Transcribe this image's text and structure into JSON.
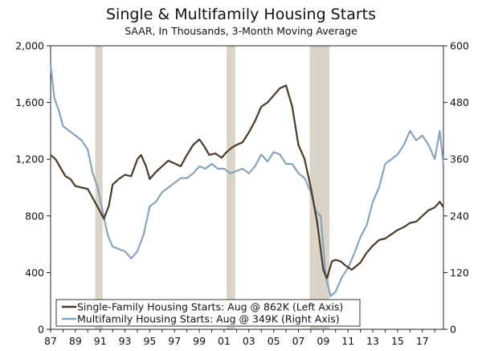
{
  "chart_data": {
    "type": "line",
    "title": "Single & Multifamily Housing Starts",
    "subtitle": "SAAR, In Thousands, 3-Month Moving Average",
    "x_range": [
      1987,
      2018.7
    ],
    "x_tick_values": [
      1987,
      1989,
      1991,
      1993,
      1995,
      1997,
      1999,
      2001,
      2003,
      2005,
      2007,
      2009,
      2011,
      2013,
      2015,
      2017
    ],
    "x_tick_labels": [
      "87",
      "89",
      "91",
      "93",
      "95",
      "97",
      "99",
      "01",
      "03",
      "05",
      "07",
      "09",
      "11",
      "13",
      "15",
      "17"
    ],
    "y_left": {
      "range": [
        0,
        2000
      ],
      "ticks": [
        0,
        400,
        800,
        1200,
        1600,
        2000
      ],
      "tick_labels": [
        "0",
        "400",
        "800",
        "1,200",
        "1,600",
        "2,000"
      ]
    },
    "y_right": {
      "range": [
        0,
        600
      ],
      "ticks": [
        0,
        120,
        240,
        360,
        480,
        600
      ],
      "tick_labels": [
        "0",
        "120",
        "240",
        "360",
        "480",
        "600"
      ]
    },
    "recessions": [
      [
        1990.6,
        1991.2
      ],
      [
        2001.2,
        2001.9
      ],
      [
        2007.9,
        2009.5
      ]
    ],
    "series": [
      {
        "name": "Single-Family Housing Starts: Aug @ 862K (Left Axis)",
        "axis": "left",
        "color": "#4a3a2c",
        "x": [
          1987.0,
          1987.4,
          1987.8,
          1988.2,
          1988.6,
          1989.0,
          1989.5,
          1990.0,
          1990.5,
          1991.0,
          1991.3,
          1991.7,
          1992.0,
          1992.5,
          1993.0,
          1993.5,
          1994.0,
          1994.3,
          1994.7,
          1995.0,
          1995.5,
          1996.0,
          1996.5,
          1997.0,
          1997.5,
          1998.0,
          1998.5,
          1999.0,
          1999.4,
          1999.8,
          2000.3,
          2000.8,
          2001.2,
          2001.6,
          2002.0,
          2002.5,
          2003.0,
          2003.5,
          2004.0,
          2004.5,
          2005.0,
          2005.5,
          2006.0,
          2006.5,
          2007.0,
          2007.5,
          2008.0,
          2008.5,
          2009.0,
          2009.3,
          2009.7,
          2010.0,
          2010.4,
          2010.8,
          2011.3,
          2012.0,
          2012.5,
          2013.0,
          2013.5,
          2014.0,
          2014.5,
          2015.0,
          2015.5,
          2016.0,
          2016.5,
          2017.0,
          2017.5,
          2018.0,
          2018.4,
          2018.7
        ],
        "values": [
          1230,
          1200,
          1140,
          1080,
          1060,
          1010,
          1000,
          990,
          910,
          830,
          780,
          870,
          1020,
          1060,
          1090,
          1080,
          1200,
          1230,
          1150,
          1060,
          1110,
          1150,
          1190,
          1170,
          1150,
          1230,
          1300,
          1340,
          1290,
          1230,
          1240,
          1210,
          1250,
          1280,
          1300,
          1320,
          1390,
          1470,
          1570,
          1600,
          1650,
          1700,
          1720,
          1570,
          1300,
          1200,
          1000,
          760,
          420,
          360,
          480,
          490,
          480,
          450,
          420,
          470,
          540,
          590,
          630,
          640,
          670,
          700,
          720,
          750,
          760,
          800,
          840,
          860,
          900,
          862
        ]
      },
      {
        "name": "Multifamily Housing Starts: Aug @ 349K (Right Axis)",
        "axis": "right",
        "color": "#8aa3bd",
        "x": [
          1987.0,
          1987.3,
          1987.7,
          1988.0,
          1988.5,
          1989.0,
          1989.5,
          1990.0,
          1990.4,
          1990.8,
          1991.2,
          1991.6,
          1992.0,
          1992.5,
          1993.0,
          1993.5,
          1994.0,
          1994.5,
          1995.0,
          1995.5,
          1996.0,
          1996.5,
          1997.0,
          1997.5,
          1998.0,
          1998.5,
          1999.0,
          1999.5,
          2000.0,
          2000.5,
          2001.0,
          2001.5,
          2002.0,
          2002.5,
          2003.0,
          2003.5,
          2004.0,
          2004.5,
          2005.0,
          2005.5,
          2006.0,
          2006.5,
          2007.0,
          2007.5,
          2008.0,
          2008.4,
          2008.8,
          2009.2,
          2009.6,
          2010.0,
          2010.5,
          2011.0,
          2011.5,
          2012.0,
          2012.5,
          2013.0,
          2013.5,
          2014.0,
          2014.5,
          2015.0,
          2015.5,
          2016.0,
          2016.5,
          2017.0,
          2017.5,
          2018.0,
          2018.4,
          2018.7
        ],
        "values": [
          560,
          490,
          460,
          430,
          420,
          410,
          400,
          380,
          330,
          300,
          250,
          200,
          175,
          170,
          165,
          150,
          165,
          200,
          260,
          270,
          290,
          300,
          310,
          320,
          320,
          330,
          345,
          340,
          350,
          340,
          340,
          330,
          335,
          340,
          330,
          345,
          370,
          355,
          375,
          370,
          350,
          350,
          330,
          320,
          290,
          250,
          240,
          110,
          70,
          80,
          110,
          130,
          160,
          195,
          220,
          270,
          300,
          350,
          360,
          370,
          390,
          420,
          400,
          410,
          390,
          360,
          420,
          349
        ]
      }
    ]
  }
}
